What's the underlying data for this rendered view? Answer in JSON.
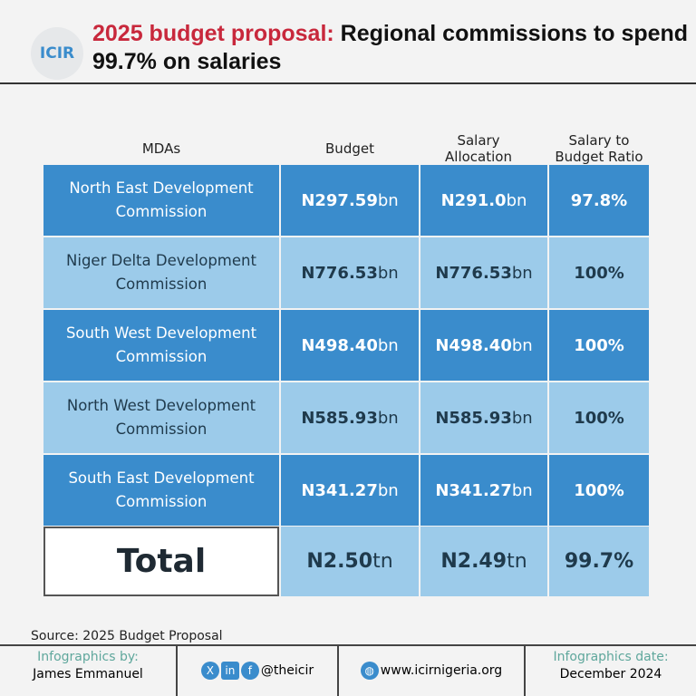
{
  "header": {
    "logo": "ICIR",
    "title_red": "2025 budget proposal:",
    "title_rest": " Regional commissions to spend 99.7% on salaries"
  },
  "table": {
    "columns": [
      "MDAs",
      "Budget",
      "Salary Allocation",
      "Salary to Budget Ratio"
    ],
    "rows": [
      {
        "mda": "North East Development Commission",
        "budget": "N297.59",
        "budget_unit": "bn",
        "salary": "N291.0",
        "salary_unit": "bn",
        "ratio": "97.8%"
      },
      {
        "mda": "Niger Delta Development Commission",
        "budget": "N776.53",
        "budget_unit": "bn",
        "salary": "N776.53",
        "salary_unit": "bn",
        "ratio": "100%"
      },
      {
        "mda": "South West Development Commission",
        "budget": "N498.40",
        "budget_unit": "bn",
        "salary": "N498.40",
        "salary_unit": "bn",
        "ratio": "100%"
      },
      {
        "mda": "North West Development Commission",
        "budget": "N585.93",
        "budget_unit": "bn",
        "salary": "N585.93",
        "salary_unit": "bn",
        "ratio": "100%"
      },
      {
        "mda": "South East Development Commission",
        "budget": "N341.27",
        "budget_unit": "bn",
        "salary": "N341.27",
        "salary_unit": "bn",
        "ratio": "100%"
      }
    ],
    "total": {
      "label": "Total",
      "budget": "N2.50",
      "budget_unit": "tn",
      "salary": "N2.49",
      "salary_unit": "tn",
      "ratio": "99.7%"
    }
  },
  "footer": {
    "source": "Source: 2025 Budget Proposal",
    "by_label": "Infographics by:",
    "by_name": "James Emmanuel",
    "social": "@theicir",
    "website": "www.icirnigeria.org",
    "date_label": "Infographics date:",
    "date": "December 2024"
  },
  "colors": {
    "dark_row": "#3a8ccc",
    "light_row": "#9ccbea",
    "accent_red": "#c8283c"
  }
}
